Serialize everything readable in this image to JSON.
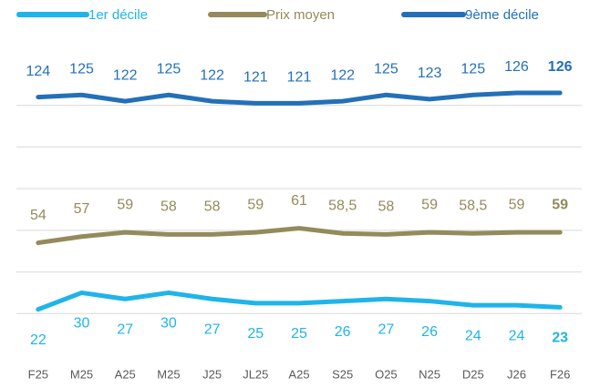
{
  "chart_data": {
    "type": "line",
    "categories": [
      "F25",
      "M25",
      "A25",
      "M25",
      "J25",
      "JL25",
      "A25",
      "S25",
      "O25",
      "N25",
      "D25",
      "J26",
      "F26"
    ],
    "series": [
      {
        "name": "1er décile",
        "color": "#1fb4ea",
        "values": [
          22,
          30,
          27,
          30,
          27,
          25,
          25,
          26,
          27,
          26,
          24,
          24,
          23
        ]
      },
      {
        "name": "Prix moyen",
        "color": "#948a5b",
        "values": [
          54,
          57,
          59,
          58,
          58,
          59,
          61,
          58.5,
          58,
          59,
          58.5,
          59,
          59
        ],
        "value_labels": [
          "54",
          "57",
          "59",
          "58",
          "58",
          "59",
          "61",
          "58,5",
          "58",
          "59",
          "58,5",
          "59",
          "59"
        ]
      },
      {
        "name": "9ème décile",
        "color": "#2370b8",
        "values": [
          124,
          125,
          122,
          125,
          122,
          121,
          121,
          122,
          125,
          123,
          125,
          126,
          126
        ]
      }
    ],
    "ylim": [
      0,
      140
    ],
    "yticks": [
      20,
      40,
      60,
      80,
      100,
      120
    ],
    "grid": true,
    "legend": "top"
  }
}
